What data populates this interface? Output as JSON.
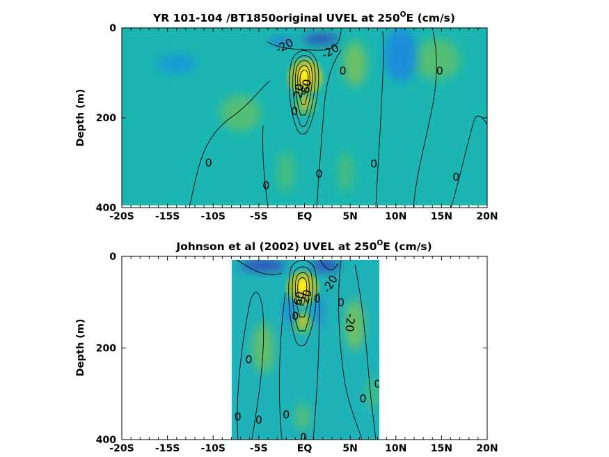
{
  "chart_data": [
    {
      "type": "heatmap",
      "title": "YR 101-104 /BT1850original UVEL at 250",
      "title_sup": "O",
      "title_tail": "E (cm/s)",
      "ylabel": "Depth (m)",
      "x_ticks": [
        "-20S",
        "-15S",
        "-10S",
        "-5S",
        "EQ",
        "5N",
        "10N",
        "15N",
        "20N"
      ],
      "x_tick_values": [
        -20,
        -15,
        -10,
        -5,
        0,
        5,
        10,
        15,
        20
      ],
      "y_ticks": [
        "0",
        "200",
        "400"
      ],
      "y_tick_values": [
        0,
        200,
        400
      ],
      "xlim": [
        -20,
        20
      ],
      "ylim": [
        0,
        400
      ],
      "data_extent_x": [
        -20,
        20
      ],
      "data_extent_depth": [
        0,
        395
      ],
      "colormap": "parula",
      "features": [
        {
          "kind": "core",
          "x": 0.1,
          "depth": 110,
          "width": 1.2,
          "height": 55,
          "value": 95
        },
        {
          "kind": "core",
          "x": 0.1,
          "depth": 170,
          "width": 0.8,
          "height": 35,
          "value": 38
        },
        {
          "kind": "band",
          "x": 5.5,
          "depth": 80,
          "width": 1.3,
          "height": 100,
          "value": 20
        },
        {
          "kind": "band",
          "x": 14.5,
          "depth": 70,
          "width": 2.5,
          "height": 90,
          "value": 15
        },
        {
          "kind": "band",
          "x": -7,
          "depth": 190,
          "width": 2.2,
          "height": 80,
          "value": 15
        },
        {
          "kind": "band",
          "x": -2,
          "depth": 320,
          "width": 0.9,
          "height": 90,
          "value": 12
        },
        {
          "kind": "band",
          "x": 4.5,
          "depth": 320,
          "width": 0.8,
          "height": 90,
          "value": 12
        },
        {
          "kind": "jet",
          "x": 1.8,
          "depth": 25,
          "width": 2.0,
          "height": 22,
          "value": -30
        },
        {
          "kind": "jet",
          "x": -2.5,
          "depth": 30,
          "width": 1.3,
          "height": 18,
          "value": -18
        },
        {
          "kind": "jet",
          "x": 10.5,
          "depth": 60,
          "width": 1.8,
          "height": 120,
          "value": -12
        },
        {
          "kind": "jet",
          "x": -14,
          "depth": 80,
          "width": 2.2,
          "height": 40,
          "value": -8
        }
      ],
      "contour_labels": [
        {
          "text": "-20",
          "x": -2.2,
          "depth": 40,
          "rot": -28
        },
        {
          "text": "-20",
          "x": 2.8,
          "depth": 52,
          "rot": -30
        },
        {
          "text": "0",
          "x": 4.2,
          "depth": 95,
          "rot": 0
        },
        {
          "text": "0",
          "x": 14.8,
          "depth": 95,
          "rot": 0
        },
        {
          "text": "20",
          "x": -0.6,
          "depth": 140,
          "rot": -80
        },
        {
          "text": "60",
          "x": 0.2,
          "depth": 130,
          "rot": -80
        },
        {
          "text": "0",
          "x": -1.1,
          "depth": 185,
          "rot": 0
        },
        {
          "text": "0",
          "x": -10.5,
          "depth": 300,
          "rot": 0
        },
        {
          "text": "0",
          "x": -4.2,
          "depth": 350,
          "rot": 0
        },
        {
          "text": "0",
          "x": 1.6,
          "depth": 325,
          "rot": 0
        },
        {
          "text": "0",
          "x": 7.6,
          "depth": 302,
          "rot": 0
        },
        {
          "text": "0",
          "x": 16.6,
          "depth": 332,
          "rot": 0
        }
      ]
    },
    {
      "type": "heatmap",
      "title": "Johnson et al (2002) UVEL at 250",
      "title_sup": "O",
      "title_tail": "E (cm/s)",
      "ylabel": "Depth (m)",
      "x_ticks": [
        "-20S",
        "-15S",
        "-10S",
        "-5S",
        "EQ",
        "5N",
        "10N",
        "15N",
        "20N"
      ],
      "x_tick_values": [
        -20,
        -15,
        -10,
        -5,
        0,
        5,
        10,
        15,
        20
      ],
      "y_ticks": [
        "0",
        "200",
        "400"
      ],
      "y_tick_values": [
        0,
        200,
        400
      ],
      "xlim": [
        -20,
        20
      ],
      "ylim": [
        0,
        400
      ],
      "data_extent_x": [
        -8,
        8.2
      ],
      "data_extent_depth": [
        5,
        400
      ],
      "colormap": "parula",
      "features": [
        {
          "kind": "core",
          "x": -0.2,
          "depth": 70,
          "width": 1.1,
          "height": 50,
          "value": 95
        },
        {
          "kind": "core",
          "x": -0.2,
          "depth": 145,
          "width": 0.8,
          "height": 35,
          "value": 40
        },
        {
          "kind": "band",
          "x": 5.5,
          "depth": 150,
          "width": 1.0,
          "height": 110,
          "value": 22
        },
        {
          "kind": "band",
          "x": -4.5,
          "depth": 200,
          "width": 1.2,
          "height": 110,
          "value": 18
        },
        {
          "kind": "band",
          "x": -0.2,
          "depth": 350,
          "width": 0.8,
          "height": 60,
          "value": 15
        },
        {
          "kind": "band",
          "x": 7.5,
          "depth": 300,
          "width": 0.8,
          "height": 70,
          "value": 10
        },
        {
          "kind": "jet",
          "x": -4.5,
          "depth": 20,
          "width": 2.5,
          "height": 25,
          "value": -30
        },
        {
          "kind": "jet",
          "x": 2.3,
          "depth": 20,
          "width": 1.6,
          "height": 25,
          "value": -30
        },
        {
          "kind": "jet",
          "x": -1.6,
          "depth": 120,
          "width": 0.6,
          "height": 70,
          "value": -12
        },
        {
          "kind": "jet",
          "x": 1.5,
          "depth": 120,
          "width": 0.6,
          "height": 70,
          "value": -12
        }
      ],
      "contour_labels": [
        {
          "text": "-20",
          "x": 2.8,
          "depth": 60,
          "rot": -60
        },
        {
          "text": "60",
          "x": -0.6,
          "depth": 92,
          "rot": -75
        },
        {
          "text": "20",
          "x": 0.2,
          "depth": 88,
          "rot": -75
        },
        {
          "text": "0",
          "x": 1.4,
          "depth": 92,
          "rot": 0
        },
        {
          "text": "0",
          "x": 4.0,
          "depth": 100,
          "rot": 0
        },
        {
          "text": "-20",
          "x": 5.0,
          "depth": 145,
          "rot": 95
        },
        {
          "text": "0",
          "x": -1.0,
          "depth": 130,
          "rot": 0
        },
        {
          "text": "0",
          "x": -6.1,
          "depth": 225,
          "rot": 0
        },
        {
          "text": "0",
          "x": 8.0,
          "depth": 278,
          "rot": 0
        },
        {
          "text": "0",
          "x": 6.4,
          "depth": 310,
          "rot": 0
        },
        {
          "text": "0",
          "x": -7.3,
          "depth": 350,
          "rot": 0
        },
        {
          "text": "0",
          "x": -5.0,
          "depth": 357,
          "rot": 0
        },
        {
          "text": "0",
          "x": -2.0,
          "depth": 345,
          "rot": 0
        },
        {
          "text": "0",
          "x": -0.1,
          "depth": 395,
          "rot": 0
        }
      ]
    }
  ]
}
